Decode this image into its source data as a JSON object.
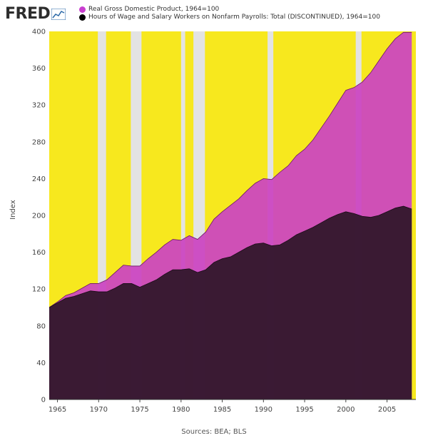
{
  "header": {
    "logo_text": "FRED",
    "legend": [
      {
        "label": "Real Gross Domestic Product, 1964=100",
        "color": "#c93fd0"
      },
      {
        "label": "Hours of Wage and Salary Workers on Nonfarm Payrolls: Total (DISCONTINUED), 1964=100",
        "color": "#000000"
      }
    ]
  },
  "footer": {
    "source": "Sources: BEA; BLS"
  },
  "colors": {
    "background": "#f7e81e",
    "recession": "#e3e3e3",
    "gdp_fill": "#cb44c2",
    "hours_fill": "#34182e",
    "line": "#1a0a18"
  },
  "chart_data": {
    "type": "area",
    "title": "",
    "xlabel": "",
    "ylabel": "Index",
    "xlim": [
      1964,
      2008.5
    ],
    "ylim": [
      0,
      400
    ],
    "x_ticks": [
      1965,
      1970,
      1975,
      1980,
      1985,
      1990,
      1995,
      2000,
      2005
    ],
    "x_tick_labels": [
      "1965",
      "1970",
      "1975",
      "1980",
      "1985",
      "1990",
      "1995",
      "2000",
      "2005"
    ],
    "y_ticks": [
      0,
      40,
      80,
      120,
      160,
      200,
      240,
      280,
      320,
      360,
      400
    ],
    "y_tick_labels": [
      "0",
      "40",
      "80",
      "120",
      "160",
      "200",
      "240",
      "280",
      "320",
      "360",
      "400"
    ],
    "grid": true,
    "recessions": [
      {
        "start": 1969.9,
        "end": 1970.9
      },
      {
        "start": 1973.9,
        "end": 1975.2
      },
      {
        "start": 1980.0,
        "end": 1980.5
      },
      {
        "start": 1981.5,
        "end": 1982.9
      },
      {
        "start": 1990.5,
        "end": 1991.2
      },
      {
        "start": 2001.2,
        "end": 2001.9
      }
    ],
    "series": [
      {
        "name": "Real Gross Domestic Product, 1964=100",
        "x": [
          1964,
          1965,
          1966,
          1967,
          1968,
          1969,
          1970,
          1971,
          1972,
          1973,
          1974,
          1975,
          1976,
          1977,
          1978,
          1979,
          1980,
          1981,
          1982,
          1983,
          1984,
          1985,
          1986,
          1987,
          1988,
          1989,
          1990,
          1991,
          1992,
          1993,
          1994,
          1995,
          1996,
          1997,
          1998,
          1999,
          2000,
          2001,
          2002,
          2003,
          2004,
          2005,
          2006,
          2007,
          2008
        ],
        "values": [
          100,
          106,
          113,
          116,
          121,
          126,
          126,
          130,
          138,
          146,
          145,
          145,
          153,
          160,
          168,
          174,
          173,
          178,
          174,
          182,
          196,
          204,
          211,
          218,
          227,
          235,
          240,
          239,
          247,
          254,
          265,
          272,
          282,
          295,
          308,
          322,
          336,
          339,
          345,
          355,
          368,
          381,
          392,
          399,
          399
        ]
      },
      {
        "name": "Hours of Wage and Salary Workers on Nonfarm Payrolls: Total (DISCONTINUED), 1964=100",
        "x": [
          1964,
          1965,
          1966,
          1967,
          1968,
          1969,
          1970,
          1971,
          1972,
          1973,
          1974,
          1975,
          1976,
          1977,
          1978,
          1979,
          1980,
          1981,
          1982,
          1983,
          1984,
          1985,
          1986,
          1987,
          1988,
          1989,
          1990,
          1991,
          1992,
          1993,
          1994,
          1995,
          1996,
          1997,
          1998,
          1999,
          2000,
          2001,
          2002,
          2003,
          2004,
          2005,
          2006,
          2007,
          2008
        ],
        "values": [
          100,
          105,
          110,
          112,
          115,
          118,
          117,
          117,
          121,
          126,
          126,
          122,
          126,
          130,
          136,
          141,
          141,
          142,
          138,
          141,
          149,
          153,
          155,
          160,
          165,
          169,
          170,
          167,
          168,
          173,
          179,
          183,
          187,
          192,
          197,
          201,
          204,
          202,
          199,
          198,
          200,
          204,
          208,
          210,
          207
        ]
      }
    ]
  }
}
